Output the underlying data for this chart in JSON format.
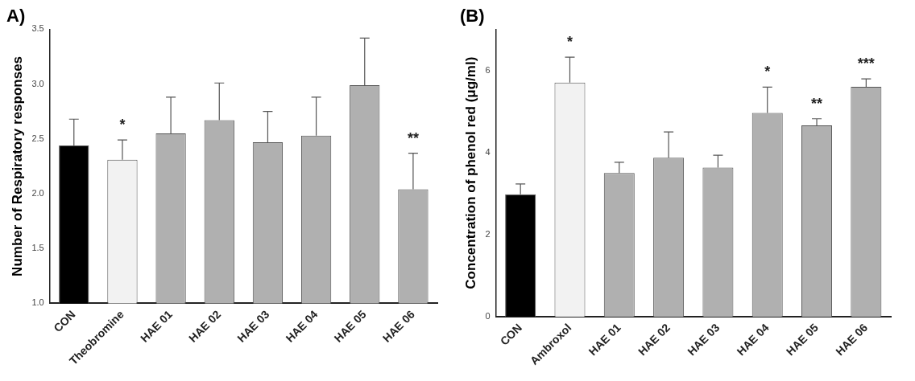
{
  "chart_data": [
    {
      "type": "bar",
      "title": "A)",
      "ylabel": "Number of Respiratory responses",
      "categories": [
        "CON",
        "Theobromine",
        "HAE 01",
        "HAE 02",
        "HAE 03",
        "HAE 04",
        "HAE 05",
        "HAE 06"
      ],
      "values": [
        2.44,
        2.31,
        2.55,
        2.67,
        2.47,
        2.53,
        2.99,
        2.04
      ],
      "errors": [
        [
          2.44,
          2.68
        ],
        [
          2.31,
          2.49
        ],
        [
          2.55,
          2.88
        ],
        [
          2.67,
          3.01
        ],
        [
          2.47,
          2.75
        ],
        [
          2.53,
          2.88
        ],
        [
          2.99,
          3.42
        ],
        [
          2.04,
          2.37
        ]
      ],
      "colors": [
        "#000000",
        "#f2f2f2",
        "#b0b0b0",
        "#b0b0b0",
        "#b0b0b0",
        "#b0b0b0",
        "#b0b0b0",
        "#b0b0b0"
      ],
      "ylim": [
        1,
        3.5
      ],
      "yticks": [
        {
          "value": 1,
          "label": "1.0"
        },
        {
          "value": 1.5,
          "label": "1.5"
        },
        {
          "value": 2,
          "label": "2.0"
        },
        {
          "value": 2.5,
          "label": "2.5"
        },
        {
          "value": 3,
          "label": "3.0"
        },
        {
          "value": 3.5,
          "label": "3.5"
        }
      ],
      "annotations": [
        {
          "text": "*",
          "x": "Theobromine",
          "y": 2.49
        },
        {
          "text": "**",
          "x": "HAE 06",
          "y": 2.37
        }
      ],
      "grid": false,
      "legend": false
    },
    {
      "type": "bar",
      "title": "(B)",
      "ylabel": "Concentration of phenol red (μg/ml)",
      "categories": [
        "CON",
        "Ambroxol",
        "HAE 01",
        "HAE 02",
        "HAE 03",
        "HAE 04",
        "HAE 05",
        "HAE 06"
      ],
      "values": [
        2.98,
        5.7,
        3.5,
        3.87,
        3.63,
        4.96,
        4.66,
        5.6
      ],
      "errors": [
        [
          2.98,
          3.23
        ],
        [
          5.7,
          6.32
        ],
        [
          3.5,
          3.76
        ],
        [
          3.87,
          4.5
        ],
        [
          3.63,
          3.93
        ],
        [
          4.96,
          5.59
        ],
        [
          4.66,
          4.82
        ],
        [
          5.6,
          5.79
        ]
      ],
      "colors": [
        "#000000",
        "#f2f2f2",
        "#b0b0b0",
        "#b0b0b0",
        "#b0b0b0",
        "#b0b0b0",
        "#b0b0b0",
        "#b0b0b0"
      ],
      "ylim": [
        0,
        7
      ],
      "yticks": [
        0,
        2,
        4,
        6
      ],
      "annotations": [
        {
          "text": "*",
          "x": "Ambroxol",
          "y": 6.32
        },
        {
          "text": "*",
          "x": "HAE 04",
          "y": 5.59
        },
        {
          "text": "**",
          "x": "HAE 05",
          "y": 4.82
        },
        {
          "text": "***",
          "x": "HAE 06",
          "y": 5.79
        }
      ],
      "grid": false,
      "legend": false
    }
  ]
}
